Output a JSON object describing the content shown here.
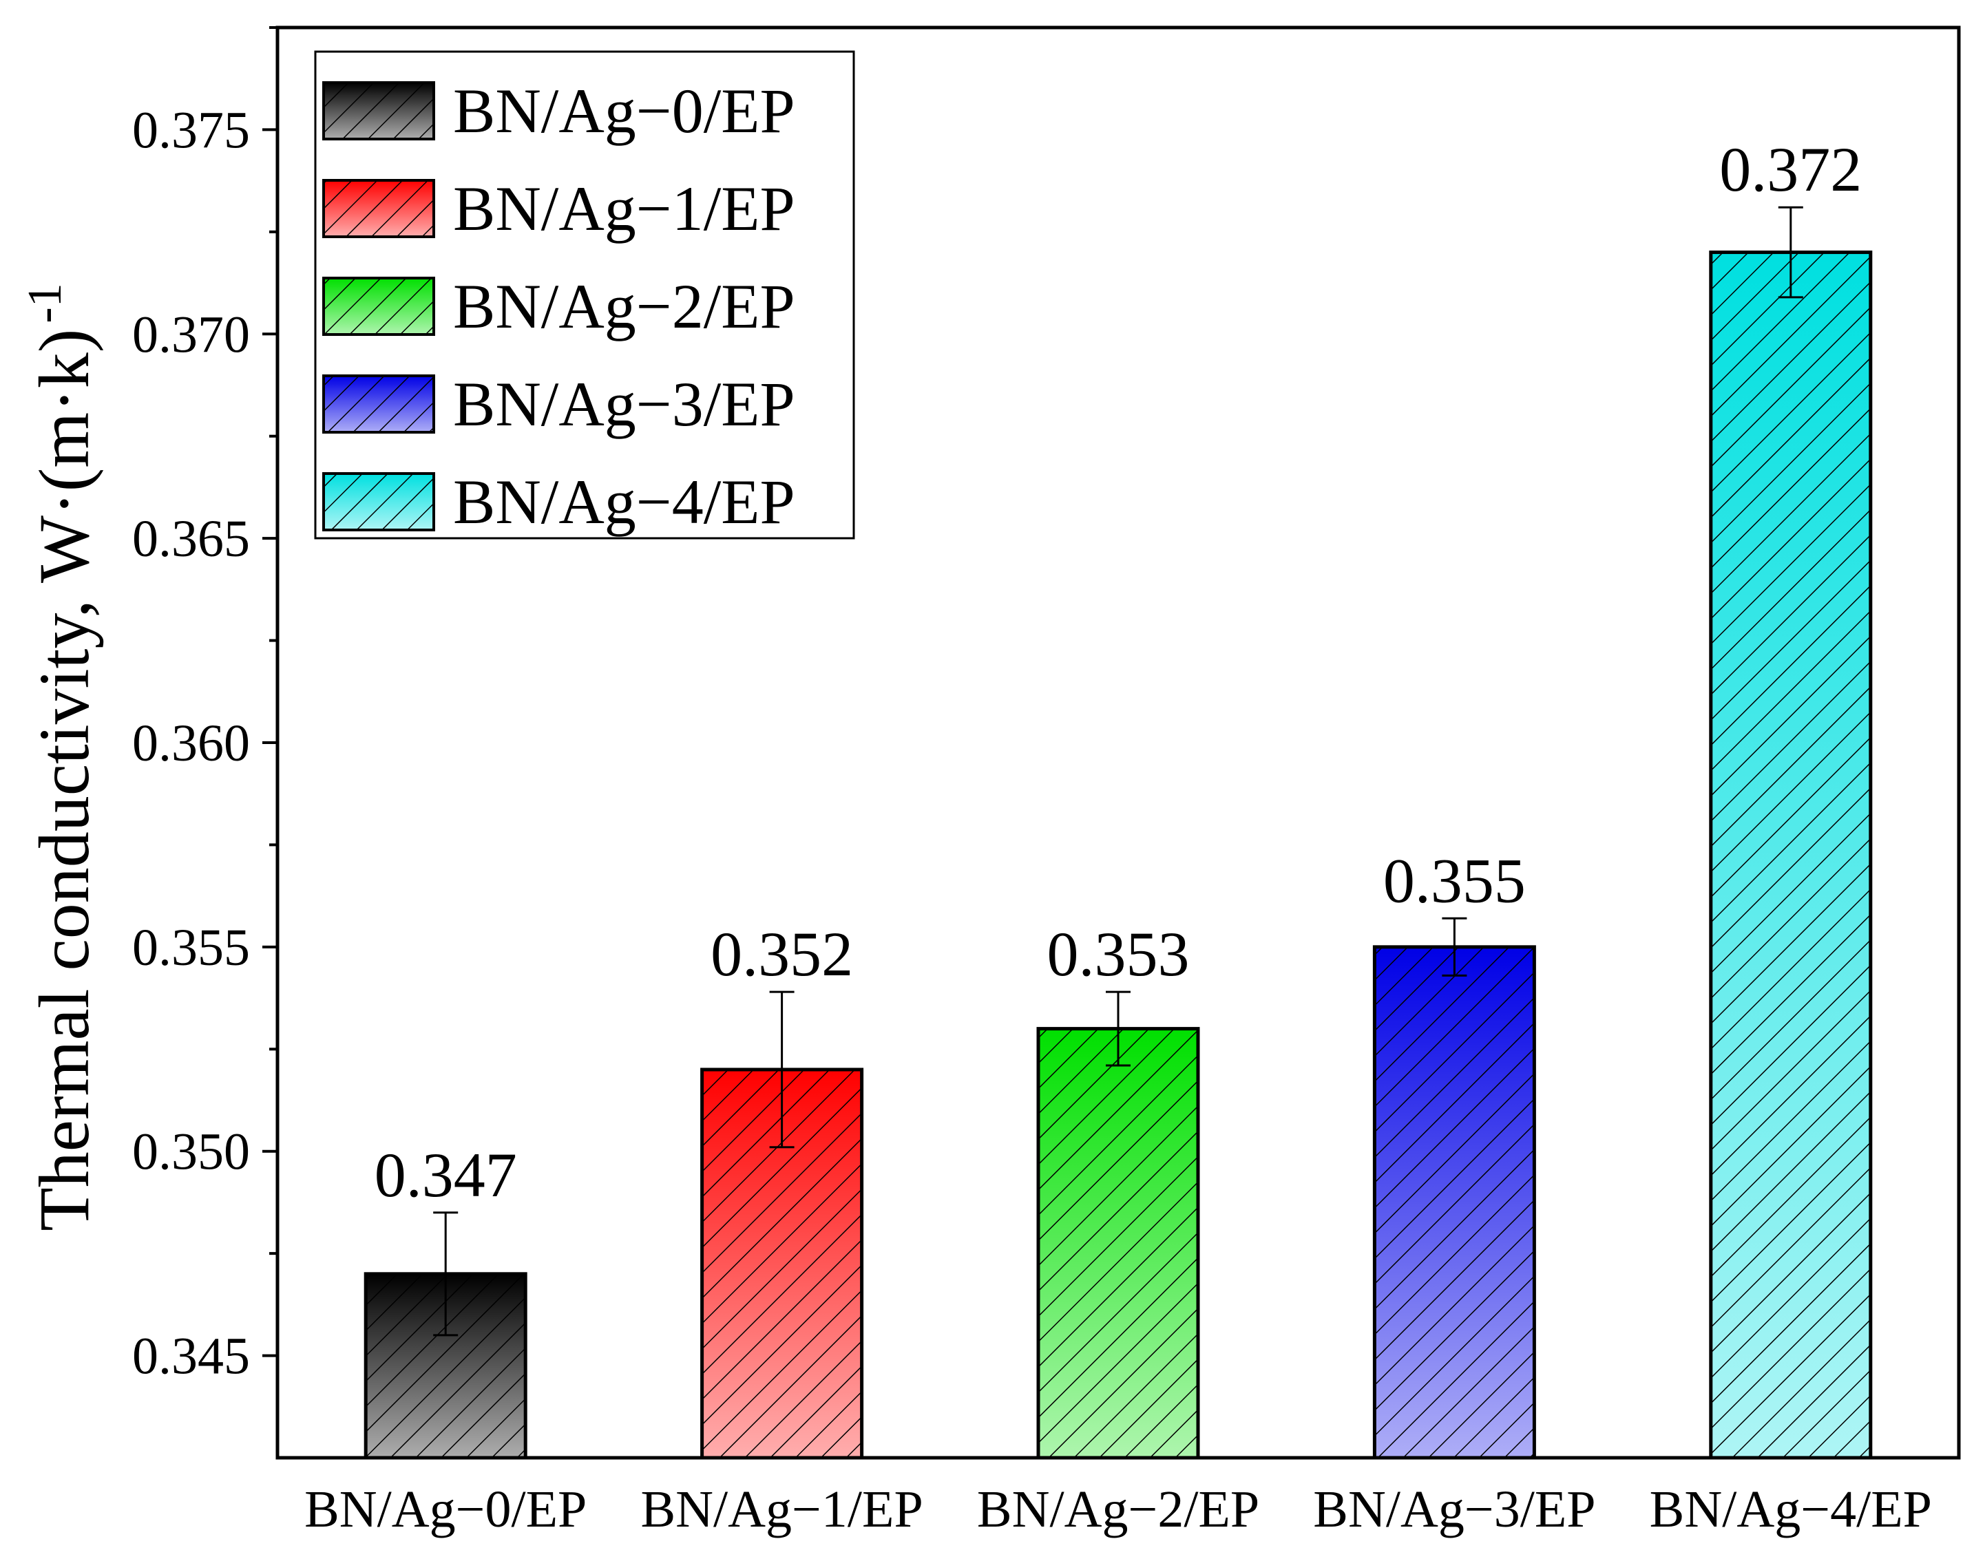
{
  "chart_data": {
    "type": "bar",
    "categories": [
      "BN/Ag−0/EP",
      "BN/Ag−1/EP",
      "BN/Ag−2/EP",
      "BN/Ag−3/EP",
      "BN/Ag−4/EP"
    ],
    "values": [
      0.347,
      0.352,
      0.353,
      0.355,
      0.372
    ],
    "value_labels": [
      "0.347",
      "0.352",
      "0.353",
      "0.355",
      "0.372"
    ],
    "error": [
      0.0015,
      0.0019,
      0.0009,
      0.0007,
      0.0011
    ],
    "colors": [
      "#000000",
      "#ff0000",
      "#00e000",
      "#0000e6",
      "#00e0e0"
    ],
    "hatch": "diagonal",
    "ylabel": "Thermal conductivity,  W·(m·k)",
    "ylabel_sup": "-1",
    "xlabel": "",
    "ylim": [
      0.3425,
      0.3775
    ],
    "yticks": [
      0.345,
      0.35,
      0.355,
      0.36,
      0.365,
      0.37,
      0.375
    ],
    "ytick_labels": [
      "0.345",
      "0.350",
      "0.355",
      "0.360",
      "0.365",
      "0.370",
      "0.375"
    ],
    "legend": {
      "position": "top-left",
      "entries": [
        "BN/Ag−0/EP",
        "BN/Ag−1/EP",
        "BN/Ag−2/EP",
        "BN/Ag−3/EP",
        "BN/Ag−4/EP"
      ]
    }
  }
}
